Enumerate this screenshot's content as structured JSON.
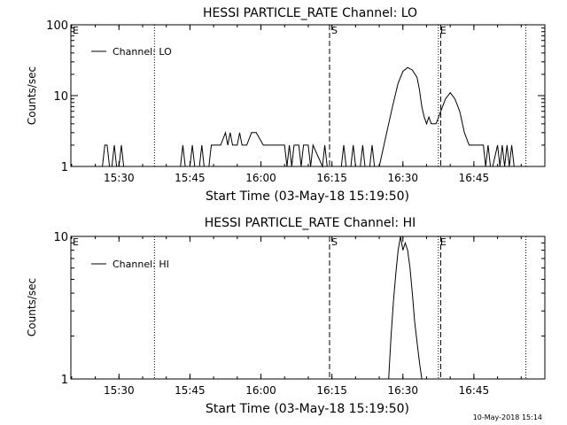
{
  "footer_timestamp": "10-May-2018 15:14",
  "chart_data": [
    {
      "type": "line",
      "title": "HESSI PARTICLE_RATE Channel: LO",
      "xlabel": "Start Time (03-May-18 15:19:50)",
      "ylabel": "Counts/sec",
      "yscale": "log",
      "ylim": [
        1,
        100
      ],
      "xlim": [
        "15:19:50",
        "17:00:00"
      ],
      "y_ticks": [
        "1",
        "10",
        "100"
      ],
      "x_ticks": [
        "15:30",
        "15:45",
        "16:00",
        "16:15",
        "16:30",
        "16:45"
      ],
      "legend": "Channel: LO",
      "legend_position": "top-left",
      "markers": [
        {
          "label": "E",
          "time": "15:19:50",
          "style": "dotted"
        },
        {
          "label": "",
          "time": "15:37:30",
          "style": "dotted"
        },
        {
          "label": "S",
          "time": "16:14:30",
          "style": "dashed"
        },
        {
          "label": "E",
          "time": "16:37:30",
          "style": "dotted"
        },
        {
          "label": "",
          "time": "16:38:00",
          "style": "dashed"
        },
        {
          "label": "",
          "time": "16:56:00",
          "style": "dotted"
        }
      ],
      "series": [
        {
          "name": "Channel: LO",
          "x": [
            "15:26:30",
            "15:27:00",
            "15:27:30",
            "15:28:00",
            "15:28:30",
            "15:29:00",
            "15:29:30",
            "15:30:00",
            "15:30:30",
            "15:31:00",
            "15:43:00",
            "15:43:30",
            "15:44:00",
            "15:45:00",
            "15:45:30",
            "15:46:00",
            "15:47:00",
            "15:47:30",
            "15:48:00",
            "15:49:00",
            "15:49:30",
            "15:50:00",
            "15:50:30",
            "15:51:00",
            "15:51:30",
            "15:52:30",
            "15:53:00",
            "15:53:30",
            "15:54:00",
            "15:54:30",
            "15:55:00",
            "15:55:30",
            "15:56:00",
            "15:57:00",
            "15:58:00",
            "15:58:30",
            "15:59:00",
            "16:00:30",
            "16:01:00",
            "16:03:30",
            "16:04:00",
            "16:04:30",
            "16:05:00",
            "16:05:30",
            "16:06:00",
            "16:06:30",
            "16:07:00",
            "16:08:00",
            "16:08:30",
            "16:09:00",
            "16:10:00",
            "16:10:30",
            "16:11:00",
            "16:13:00",
            "16:13:30",
            "16:14:00",
            "16:17:00",
            "16:17:30",
            "16:18:00",
            "16:19:00",
            "16:19:30",
            "16:20:00",
            "16:21:00",
            "16:21:30",
            "16:22:00",
            "16:23:00",
            "16:23:30",
            "16:24:00",
            "16:25:00",
            "16:26:00",
            "16:27:00",
            "16:28:00",
            "16:29:00",
            "16:30:00",
            "16:31:00",
            "16:32:00",
            "16:33:00",
            "16:33:30",
            "16:34:00",
            "16:34:30",
            "16:35:00",
            "16:35:30",
            "16:36:00",
            "16:37:00",
            "16:38:00",
            "16:39:00",
            "16:40:00",
            "16:41:00",
            "16:42:00",
            "16:43:00",
            "16:44:00",
            "16:45:00",
            "16:46:00",
            "16:47:00",
            "16:47:30",
            "16:48:00",
            "16:48:30",
            "16:49:00",
            "16:50:00",
            "16:50:30",
            "16:51:00",
            "16:51:30",
            "16:52:00",
            "16:52:30",
            "16:53:00",
            "16:53:30",
            "16:54:00"
          ],
          "y": [
            1,
            2,
            2,
            1,
            1,
            2,
            1,
            1,
            2,
            1,
            1,
            2,
            1,
            1,
            2,
            1,
            1,
            2,
            1,
            1,
            2,
            2,
            2,
            2,
            2,
            3,
            2,
            3,
            2,
            2,
            2,
            3,
            2,
            2,
            3,
            3,
            3,
            2,
            2,
            2,
            2,
            2,
            2,
            1,
            2,
            1,
            2,
            2,
            1,
            2,
            2,
            1,
            2,
            1,
            2,
            1,
            1,
            2,
            1,
            1,
            2,
            1,
            1,
            2,
            1,
            1,
            2,
            1,
            1,
            2,
            4,
            8,
            15,
            22,
            25,
            23,
            18,
            12,
            7,
            5,
            4,
            5,
            4,
            4,
            6,
            9,
            11,
            9,
            6,
            3,
            2,
            2,
            2,
            2,
            1,
            2,
            1,
            1,
            2,
            1,
            2,
            1,
            2,
            1,
            2,
            1,
            1
          ]
        }
      ]
    },
    {
      "type": "line",
      "title": "HESSI PARTICLE_RATE Channel: HI",
      "xlabel": "Start Time (03-May-18 15:19:50)",
      "ylabel": "Counts/sec",
      "yscale": "log",
      "ylim": [
        1,
        10
      ],
      "xlim": [
        "15:19:50",
        "17:00:00"
      ],
      "y_ticks": [
        "1",
        "10"
      ],
      "x_ticks": [
        "15:30",
        "15:45",
        "16:00",
        "16:15",
        "16:30",
        "16:45"
      ],
      "legend": "Channel: HI",
      "legend_position": "top-left",
      "markers": [
        {
          "label": "E",
          "time": "15:19:50",
          "style": "dotted"
        },
        {
          "label": "",
          "time": "15:37:30",
          "style": "dotted"
        },
        {
          "label": "S",
          "time": "16:14:30",
          "style": "dashed"
        },
        {
          "label": "E",
          "time": "16:37:30",
          "style": "dotted"
        },
        {
          "label": "",
          "time": "16:38:00",
          "style": "dashed"
        },
        {
          "label": "",
          "time": "16:56:00",
          "style": "dotted"
        }
      ],
      "series": [
        {
          "name": "Channel: HI",
          "x": [
            "16:27:00",
            "16:27:30",
            "16:28:00",
            "16:28:30",
            "16:29:00",
            "16:29:30",
            "16:30:00",
            "16:30:30",
            "16:31:00",
            "16:31:30",
            "16:32:00",
            "16:32:30",
            "16:33:00",
            "16:33:30",
            "16:34:00",
            "16:34:30"
          ],
          "y": [
            1,
            2,
            3.5,
            5.5,
            8,
            10.5,
            8,
            9,
            8,
            6,
            4,
            2.5,
            1.8,
            1.3,
            1,
            1
          ]
        }
      ]
    }
  ]
}
